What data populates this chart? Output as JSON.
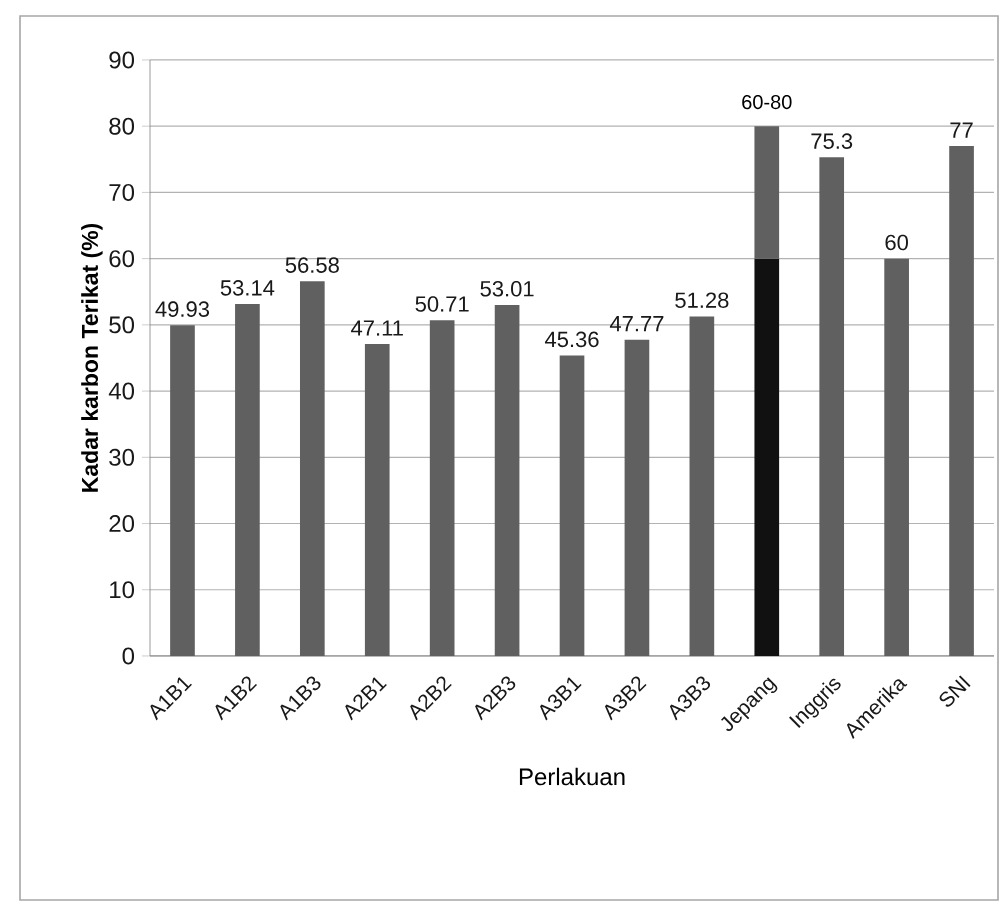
{
  "chart_data": {
    "type": "bar",
    "xlabel": "Perlakuan",
    "ylabel": "Kadar karbon Terikat (%)",
    "stacked": true,
    "categories": [
      "A1B1",
      "A1B2",
      "A1B3",
      "A2B1",
      "A2B2",
      "A2B3",
      "A3B1",
      "A3B2",
      "A3B3",
      "Jepang",
      "Inggris",
      "Amerika",
      "SNI"
    ],
    "series": [
      {
        "colors": [
          "#606060",
          "#606060",
          "#606060",
          "#606060",
          "#606060",
          "#606060",
          "#606060",
          "#606060",
          "#606060",
          "#111111",
          "#606060",
          "#606060",
          "#606060"
        ],
        "values": [
          49.93,
          53.14,
          56.58,
          47.11,
          50.71,
          53.01,
          45.36,
          47.77,
          51.28,
          60,
          75.3,
          60,
          77
        ],
        "value_labels": [
          "49.93",
          "53.14",
          "56.58",
          "47.11",
          "50.71",
          "53.01",
          "45.36",
          "47.77",
          "51.28",
          null,
          "75.3",
          "60",
          "77"
        ]
      },
      {
        "color": "#606060",
        "values": [
          null,
          null,
          null,
          null,
          null,
          null,
          null,
          null,
          null,
          20,
          null,
          null,
          null
        ]
      }
    ],
    "annotations": [
      {
        "text": "60-80",
        "x": "Jepang",
        "y": 80
      }
    ],
    "ylim": [
      0,
      90
    ],
    "yticks": [
      0,
      10,
      20,
      30,
      40,
      50,
      60,
      70,
      80,
      90
    ],
    "grid": "y"
  }
}
